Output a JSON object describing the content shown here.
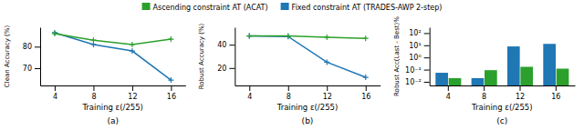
{
  "chart_data": [
    {
      "type": "line",
      "title": "(a)",
      "xlabel": "Training ε(/255)",
      "ylabel": "Clean Accuracy (%)",
      "x": [
        4,
        8,
        12,
        16
      ],
      "xlim": [
        2.5,
        17.5
      ],
      "xticks": [
        4,
        8,
        12,
        16
      ],
      "ylim": [
        62,
        89
      ],
      "yticks": [
        70,
        80
      ],
      "grid": false,
      "legend": "top",
      "series": [
        {
          "name": "Fixed constraint AT (TRADES-AWP 2-step)",
          "color": "#1f77b4",
          "marker": "plus",
          "line_style": "solid",
          "values": [
            86.5,
            81.0,
            78.0,
            64.5
          ]
        },
        {
          "name": "Ascending constraint AT (ACAT)",
          "color": "#2ca02c",
          "marker": "plus",
          "line_style": "solid",
          "values": [
            86.0,
            83.0,
            81.0,
            83.5
          ]
        }
      ]
    },
    {
      "type": "line",
      "title": "(b)",
      "xlabel": "Training ε(/255)",
      "ylabel": "Robust Accuracy (%)",
      "x": [
        4,
        8,
        12,
        16
      ],
      "xlim": [
        2.5,
        17.5
      ],
      "xticks": [
        4,
        8,
        12,
        16
      ],
      "ylim": [
        5,
        55
      ],
      "yticks": [
        20,
        40
      ],
      "grid": false,
      "series": [
        {
          "color": "#1f77b4",
          "marker": "plus",
          "line_style": "solid",
          "values": [
            47.5,
            47.0,
            25.0,
            12.0
          ]
        },
        {
          "color": "#2ca02c",
          "marker": "plus",
          "line_style": "solid",
          "values": [
            47.5,
            47.5,
            46.5,
            45.5
          ]
        }
      ]
    },
    {
      "type": "bar",
      "title": "(c)",
      "xlabel": "Training ε(/255)",
      "ylabel": "Robust Acc(Last - Best)%",
      "categories": [
        "4",
        "8",
        "12",
        "16"
      ],
      "log": "y",
      "ylim": [
        0.005,
        300
      ],
      "yticks": [
        {
          "value": 0.01,
          "label": "10⁻²"
        },
        {
          "value": 0.1,
          "label": "10⁻¹"
        },
        {
          "value": 1,
          "label": "10⁰"
        },
        {
          "value": 10,
          "label": "10¹"
        },
        {
          "value": 100,
          "label": "10²"
        }
      ],
      "grid": false,
      "series": [
        {
          "color": "#1f77b4",
          "values": [
            0.055,
            0.02,
            8.0,
            13.0
          ]
        },
        {
          "color": "#2ca02c",
          "values": [
            0.02,
            0.09,
            0.17,
            0.12
          ]
        }
      ]
    }
  ]
}
